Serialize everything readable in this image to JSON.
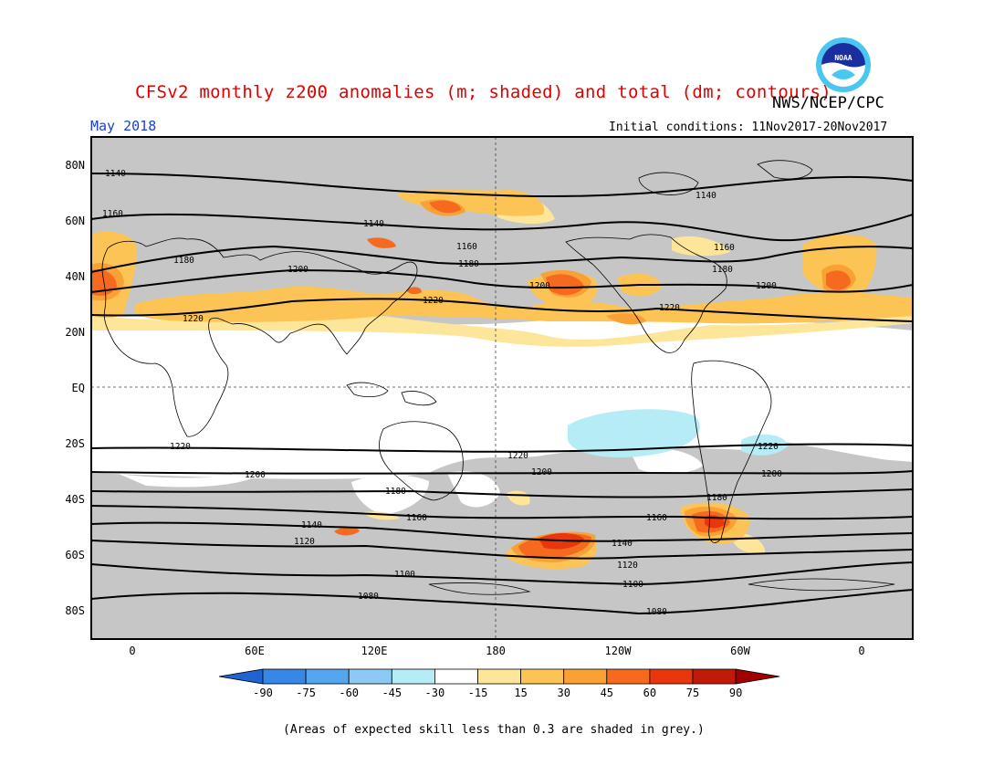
{
  "title": "CFSv2 monthly z200 anomalies (m; shaded) and total (dm; contours)",
  "agency": "NWS/NCEP/CPC",
  "logo_text": "NOAA",
  "valid_month": "May 2018",
  "initial_conditions": "Initial conditions: 11Nov2017-20Nov2017",
  "footnote": "(Areas of expected skill less than 0.3 are shaded in grey.)",
  "lat_labels": [
    "80N",
    "60N",
    "40N",
    "20N",
    "EQ",
    "20S",
    "40S",
    "60S",
    "80S"
  ],
  "lon_labels": [
    "0",
    "60E",
    "120E",
    "180",
    "120W",
    "60W",
    "0"
  ],
  "colorbar": {
    "ticks": [
      "-90",
      "-75",
      "-60",
      "-45",
      "-30",
      "-15",
      "15",
      "30",
      "45",
      "60",
      "75",
      "90"
    ],
    "colors": [
      "#1e64d2",
      "#3787e6",
      "#55a5ef",
      "#8ccaf5",
      "#b5ecf6",
      "#ffffff",
      "#fde59a",
      "#fcc455",
      "#f9a135",
      "#f56a1e",
      "#e8360d",
      "#c01a08",
      "#a00000"
    ]
  },
  "contour_labels": [
    {
      "text": "1140"
    },
    {
      "text": "1160"
    },
    {
      "text": "1180"
    },
    {
      "text": "1200"
    },
    {
      "text": "1220"
    },
    {
      "text": "1140"
    },
    {
      "text": "1160"
    },
    {
      "text": "1180"
    },
    {
      "text": "1200"
    },
    {
      "text": "1220"
    },
    {
      "text": "1140"
    },
    {
      "text": "1160"
    },
    {
      "text": "1180"
    },
    {
      "text": "1200"
    },
    {
      "text": "1220"
    },
    {
      "text": "1220"
    },
    {
      "text": "1200"
    },
    {
      "text": "1180"
    },
    {
      "text": "1140"
    },
    {
      "text": "1120"
    },
    {
      "text": "1100"
    },
    {
      "text": "1080"
    },
    {
      "text": "1220"
    },
    {
      "text": "1200"
    },
    {
      "text": "1160"
    },
    {
      "text": "1140"
    },
    {
      "text": "1120"
    },
    {
      "text": "1100"
    },
    {
      "text": "1080"
    },
    {
      "text": "1180"
    },
    {
      "text": "1160"
    },
    {
      "text": "1220"
    },
    {
      "text": "1200"
    }
  ]
}
